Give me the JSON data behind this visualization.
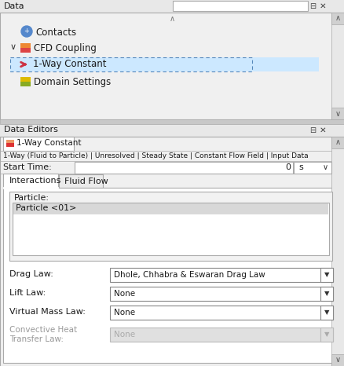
{
  "bg_color": "#f0f0f0",
  "white": "#ffffff",
  "dark_text": "#1a1a1a",
  "gray_text": "#999999",
  "blue_highlight": "#cce8ff",
  "blue_highlight_border": "#6699cc",
  "border_color": "#aaaaaa",
  "scrollbar_bg": "#e8e8e8",
  "scrollbar_btn": "#d0d0d0",
  "divider_color": "#b0b0b0",
  "title_data": "Data",
  "title_editors": "Data Editors",
  "tab_label": "1-Way Constant",
  "status_bar": "1-Way (Fluid to Particle) | Unresolved | Steady State | Constant Flow Field | Input Data",
  "start_time_label": "Start Time:",
  "start_time_value": "0",
  "start_time_unit": "s",
  "tab1": "Interactions",
  "tab2": "Fluid Flow",
  "particle_label": "Particle:",
  "particle_item": "Particle <01>",
  "drag_law_label": "Drag Law:",
  "drag_law_value": "Dhole, Chhabra & Eswaran Drag Law",
  "lift_law_label": "Lift Law:",
  "lift_law_value": "None",
  "virtual_mass_label": "Virtual Mass Law:",
  "virtual_mass_value": "None",
  "conv_heat_label": "Convective Heat\nTransfer Law:",
  "conv_heat_value": "None"
}
